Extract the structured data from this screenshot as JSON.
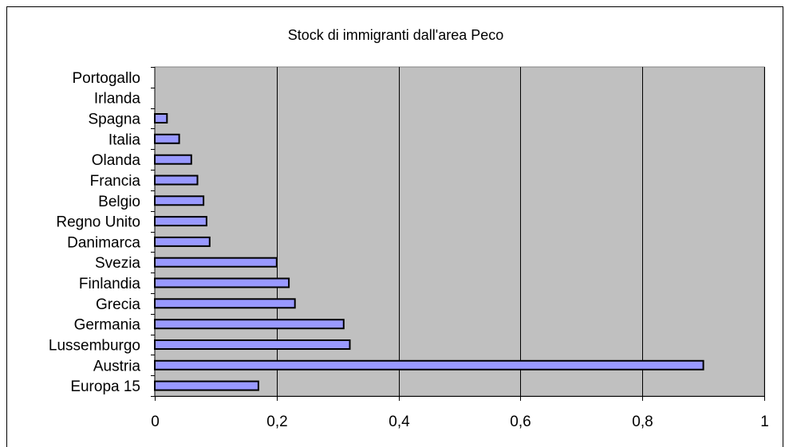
{
  "chart_data": {
    "type": "bar",
    "orientation": "horizontal",
    "title": "Stock di immigranti dall'area Peco",
    "xlabel": "",
    "ylabel": "",
    "categories": [
      "Europa 15",
      "Austria",
      "Lussemburgo",
      "Germania",
      "Grecia",
      "Finlandia",
      "Svezia",
      "Danimarca",
      "Regno Unito",
      "Belgio",
      "Francia",
      "Olanda",
      "Italia",
      "Spagna",
      "Irlanda",
      "Portogallo"
    ],
    "values": [
      0.17,
      0.9,
      0.32,
      0.31,
      0.23,
      0.22,
      0.2,
      0.09,
      0.085,
      0.08,
      0.07,
      0.06,
      0.04,
      0.02,
      0,
      0
    ],
    "xlim": [
      0,
      1
    ],
    "xticks": [
      0,
      0.2,
      0.4,
      0.6,
      0.8,
      1
    ],
    "xtick_labels": [
      "0",
      "0,2",
      "0,4",
      "0,6",
      "0,8",
      "1"
    ],
    "grid": "vertical",
    "legend": "none",
    "colors": {
      "plot_background": "#c0c0c0",
      "bar_fill": "#9999ff",
      "bar_stroke": "#000000",
      "gridline": "#000000"
    }
  }
}
